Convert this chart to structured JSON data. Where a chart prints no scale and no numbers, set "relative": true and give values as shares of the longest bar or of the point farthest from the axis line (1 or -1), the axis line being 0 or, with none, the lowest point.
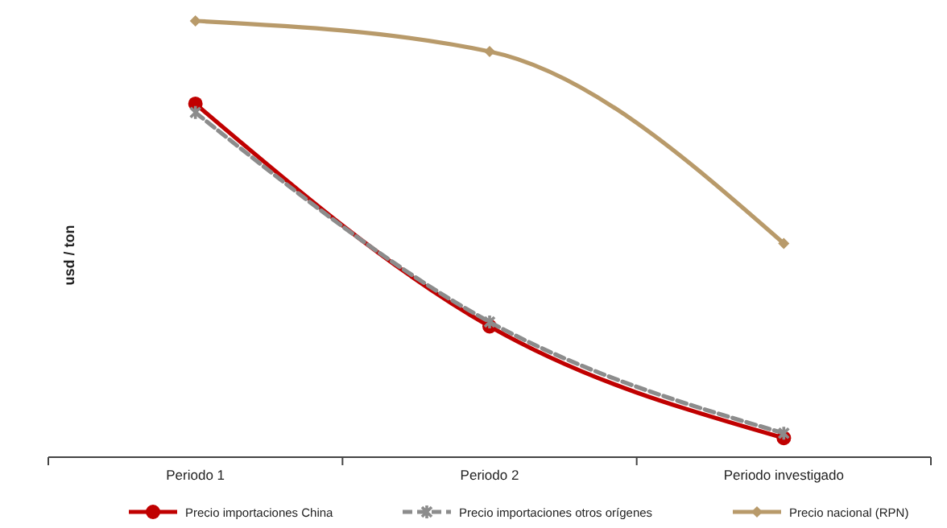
{
  "chart_data": {
    "type": "line",
    "relative": true,
    "ylabel": "usd / ton",
    "categories": [
      "Periodo 1",
      "Periodo 2",
      "Periodo investigado"
    ],
    "legend": "bottom",
    "series": [
      {
        "name": "Precio importaciones China",
        "color": "#c00000",
        "values": [
          0.81,
          0.3,
          0.044
        ],
        "marker": "circle",
        "line_style": "solid"
      },
      {
        "name": "Precio importaciones otros orígenes",
        "color": "#8c8c8c",
        "values": [
          0.79,
          0.31,
          0.055
        ],
        "marker": "cross",
        "line_style": "dashed"
      },
      {
        "name": "Precio nacional (RPN)",
        "color": "#b89a6a",
        "values": [
          1,
          0.93,
          0.49
        ],
        "marker": "diamond",
        "line_style": "solid"
      }
    ]
  }
}
